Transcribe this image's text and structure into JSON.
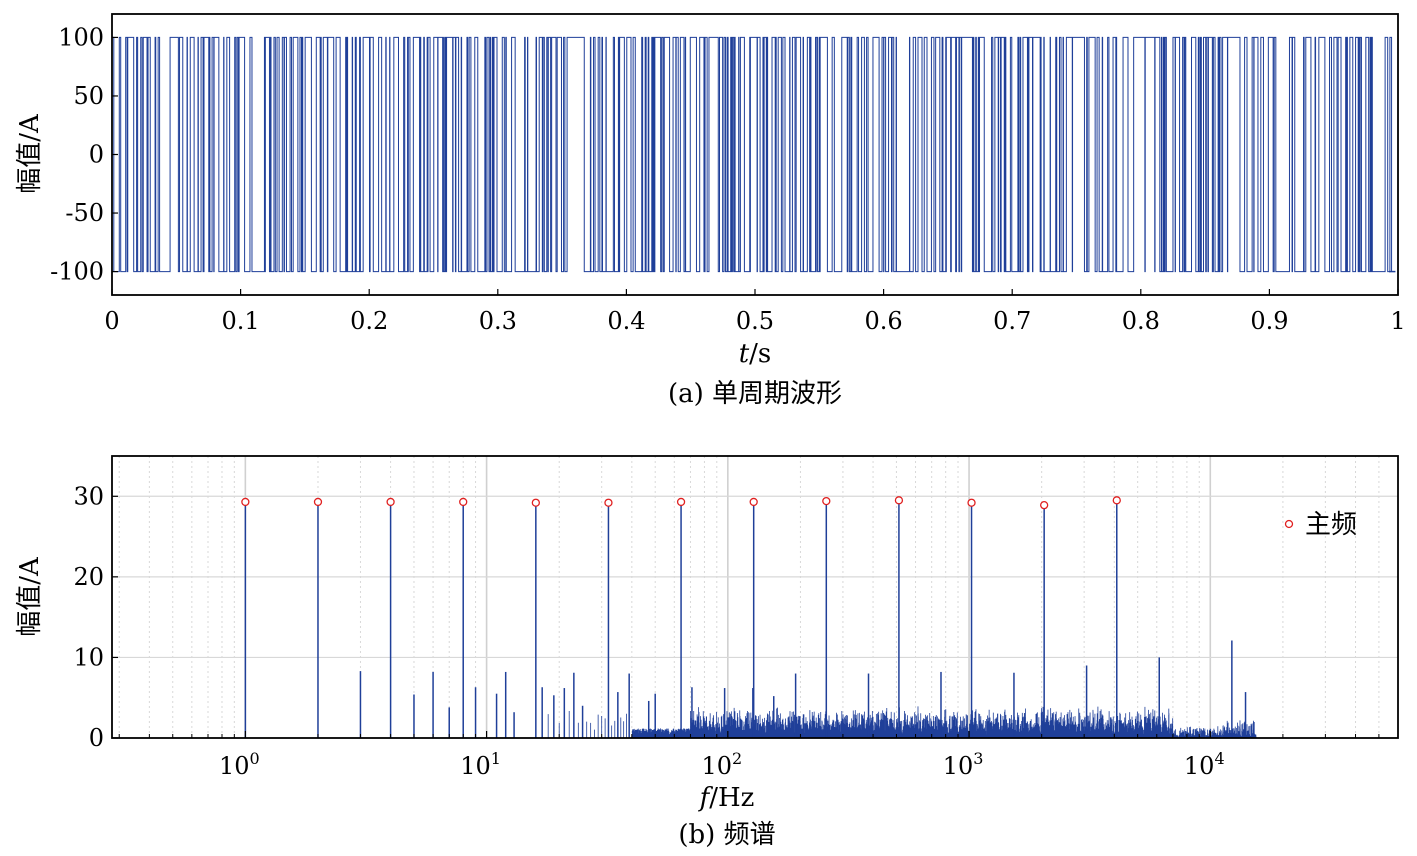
{
  "colors": {
    "signal": "#1f3f99",
    "marker": "#e02020",
    "grid": "#cccccc",
    "frame": "#000000"
  },
  "chart_data": [
    {
      "type": "line",
      "caption": "(a) 单周期波形",
      "ylabel": "幅值/A",
      "xlabel_italic": "t",
      "xlabel_unit": "/s",
      "xlim": [
        0,
        1
      ],
      "ylim": [
        -120,
        120
      ],
      "xticks": [
        "0",
        "0.1",
        "0.2",
        "0.3",
        "0.4",
        "0.5",
        "0.6",
        "0.7",
        "0.8",
        "0.9",
        "1"
      ],
      "yticks": [
        "100",
        "50",
        "0",
        "-50",
        "-100"
      ],
      "levels": [
        -100,
        100
      ],
      "grid": false,
      "series": [
        {
          "values_description_count": 0
        }
      ]
    },
    {
      "type": "bar",
      "caption": "(b) 频谱",
      "ylabel": "幅值/A",
      "xlabel_italic": "f",
      "xlabel_unit": "/Hz",
      "xscale": "log",
      "xlim": [
        0.28,
        60000
      ],
      "ylim": [
        0,
        35
      ],
      "xticks": [
        {
          "base": "10",
          "exp": "0",
          "value": 1
        },
        {
          "base": "10",
          "exp": "1",
          "value": 10
        },
        {
          "base": "10",
          "exp": "2",
          "value": 100
        },
        {
          "base": "10",
          "exp": "3",
          "value": 1000
        },
        {
          "base": "10",
          "exp": "4",
          "value": 10000
        }
      ],
      "yticks": [
        "30",
        "20",
        "10",
        "0"
      ],
      "grid": true,
      "legend": {
        "label": "主频",
        "placement": "right"
      },
      "main_freqs": {
        "x": [
          1,
          2,
          4,
          8,
          16,
          32,
          64,
          128,
          256,
          512,
          1024,
          2048,
          4096
        ],
        "y": [
          29.3,
          29.3,
          29.3,
          29.3,
          29.2,
          29.2,
          29.3,
          29.3,
          29.4,
          29.5,
          29.2,
          28.9,
          29.5
        ]
      },
      "secondary_freqs": {
        "x": [
          3,
          5,
          6,
          7,
          9,
          11,
          12,
          13,
          17,
          19,
          21,
          23,
          25,
          35,
          39,
          47,
          50,
          71,
          97,
          127,
          155,
          191,
          383,
          765,
          1535,
          3071,
          6143,
          12287,
          14000
        ],
        "y": [
          8.3,
          5.4,
          8.2,
          3.8,
          6.3,
          5.5,
          8.2,
          3.2,
          6.3,
          5.3,
          6.2,
          8.1,
          4.0,
          5.7,
          8.0,
          4.6,
          5.5,
          6.3,
          6.2,
          6.2,
          5.2,
          8.0,
          8.0,
          8.2,
          8.1,
          9.0,
          10.0,
          12.1,
          5.7
        ]
      }
    }
  ]
}
